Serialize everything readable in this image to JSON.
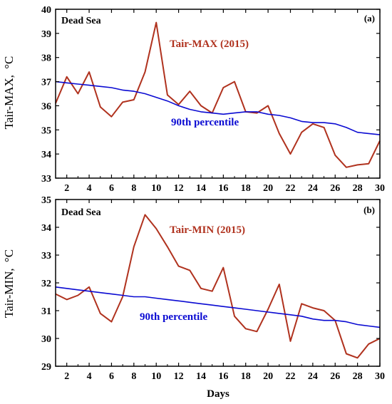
{
  "chart_data": [
    {
      "type": "line",
      "panel_label": "(a)",
      "site_label": "Dead Sea",
      "ylabel": "Tair-MAX,",
      "ylabel_unit": "°C",
      "xlabel": "",
      "xlim": [
        1,
        30
      ],
      "ylim": [
        33,
        40
      ],
      "x_ticks": [
        2,
        4,
        6,
        8,
        10,
        12,
        14,
        16,
        18,
        20,
        22,
        24,
        26,
        28,
        30
      ],
      "y_ticks": [
        33,
        34,
        35,
        36,
        37,
        38,
        39,
        40
      ],
      "x": [
        1,
        2,
        3,
        4,
        5,
        6,
        7,
        8,
        9,
        10,
        11,
        12,
        13,
        14,
        15,
        16,
        17,
        18,
        19,
        20,
        21,
        22,
        23,
        24,
        25,
        26,
        27,
        28,
        29,
        30
      ],
      "series": [
        {
          "name": "Tair-MAX (2015)",
          "color": "#b0321e",
          "values": [
            36.1,
            37.2,
            36.5,
            37.4,
            35.95,
            35.55,
            36.15,
            36.25,
            37.4,
            39.45,
            36.45,
            36.05,
            36.6,
            36.0,
            35.7,
            36.75,
            37.0,
            35.75,
            35.7,
            36.0,
            34.85,
            34.0,
            34.9,
            35.25,
            35.1,
            33.95,
            33.45,
            33.55,
            33.6,
            34.55
          ]
        },
        {
          "name": "90th percentile",
          "color": "#0a0ad2",
          "values": [
            37.0,
            36.95,
            36.9,
            36.85,
            36.8,
            36.75,
            36.65,
            36.6,
            36.5,
            36.35,
            36.2,
            36.0,
            35.85,
            35.75,
            35.7,
            35.65,
            35.7,
            35.75,
            35.75,
            35.65,
            35.6,
            35.5,
            35.35,
            35.3,
            35.3,
            35.25,
            35.1,
            34.9,
            34.85,
            34.8
          ]
        }
      ]
    },
    {
      "type": "line",
      "panel_label": "(b)",
      "site_label": "Dead Sea",
      "ylabel": "Tair-MIN,",
      "ylabel_unit": "°C",
      "xlabel": "Days",
      "xlim": [
        1,
        30
      ],
      "ylim": [
        29,
        35
      ],
      "x_ticks": [
        2,
        4,
        6,
        8,
        10,
        12,
        14,
        16,
        18,
        20,
        22,
        24,
        26,
        28,
        30
      ],
      "y_ticks": [
        29,
        30,
        31,
        32,
        33,
        34,
        35
      ],
      "x": [
        1,
        2,
        3,
        4,
        5,
        6,
        7,
        8,
        9,
        10,
        11,
        12,
        13,
        14,
        15,
        16,
        17,
        18,
        19,
        20,
        21,
        22,
        23,
        24,
        25,
        26,
        27,
        28,
        29,
        30
      ],
      "series": [
        {
          "name": "Tair-MIN (2015)",
          "color": "#b0321e",
          "values": [
            31.6,
            31.4,
            31.55,
            31.85,
            30.9,
            30.6,
            31.5,
            33.3,
            34.45,
            33.95,
            33.3,
            32.6,
            32.45,
            31.8,
            31.7,
            32.55,
            30.8,
            30.35,
            30.25,
            31.05,
            31.95,
            29.9,
            31.25,
            31.1,
            31.0,
            30.65,
            29.45,
            29.3,
            29.8,
            30.0
          ]
        },
        {
          "name": "90th percentile",
          "color": "#0a0ad2",
          "values": [
            31.85,
            31.8,
            31.75,
            31.7,
            31.65,
            31.6,
            31.55,
            31.5,
            31.5,
            31.45,
            31.4,
            31.35,
            31.3,
            31.25,
            31.2,
            31.15,
            31.1,
            31.05,
            31.0,
            30.95,
            30.9,
            30.85,
            30.8,
            30.7,
            30.65,
            30.65,
            30.6,
            30.5,
            30.45,
            30.4
          ]
        }
      ]
    }
  ]
}
